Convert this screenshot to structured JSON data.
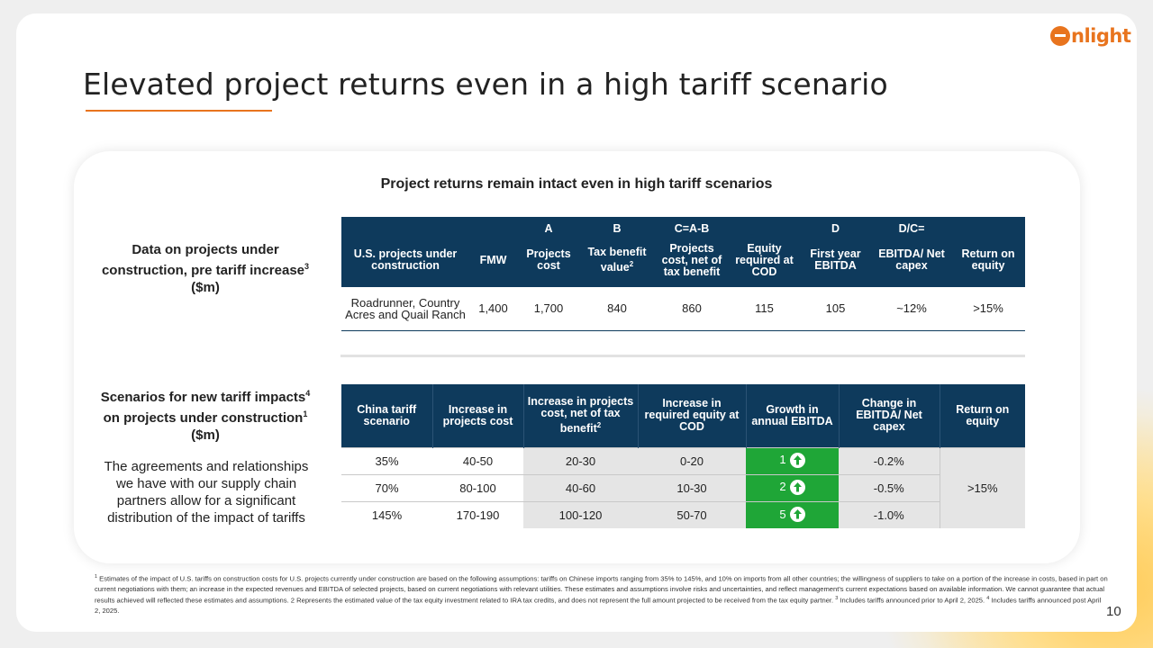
{
  "brand": {
    "logo_text": "nlight",
    "logo_letter": "e",
    "accent_color": "#e8741e",
    "header_color": "#0e3a5c",
    "green": "#1fa637"
  },
  "title": "Elevated project returns even in a high tariff scenario",
  "subtitle": "Project returns remain intact even in high tariff scenarios",
  "section1": {
    "label": "Data on projects under construction, pre tariff increase",
    "label_sup": "3",
    "label_suffix": "($m)",
    "letters": [
      "",
      "",
      "A",
      "B",
      "C=A-B",
      "",
      "D",
      "D/C=",
      ""
    ],
    "headers": [
      "U.S. projects under construction",
      "FMW",
      "Projects cost",
      "Tax benefit value",
      "Projects cost, net of tax benefit",
      "Equity required at COD",
      "First year EBITDA",
      "EBITDA/ Net capex",
      "Return on equity"
    ],
    "header_sup_tax": "2",
    "row": [
      "Roadrunner, Country Acres and Quail Ranch",
      "1,400",
      "1,700",
      "840",
      "860",
      "115",
      "105",
      "~12%",
      ">15%"
    ]
  },
  "section2": {
    "label_pre": "Scenarios for new tariff impacts",
    "label_sup1": "4",
    "label_mid": "on projects under construction",
    "label_sup2": "1",
    "label_suffix": "($m)",
    "note": "The agreements and relationships we have with our supply chain partners allow for a significant distribution of the impact of tariffs",
    "headers": [
      "China tariff scenario",
      "Increase in projects cost",
      "Increase in projects cost, net of tax benefit",
      "Increase in required equity at COD",
      "Growth in annual EBITDA",
      "Change in EBITDA/ Net capex",
      "Return on equity"
    ],
    "header_sup_net": "2",
    "rows": [
      {
        "scenario": "35%",
        "cost": "40-50",
        "net": "20-30",
        "equity": "0-20",
        "growth": "1",
        "change": "-0.2%"
      },
      {
        "scenario": "70%",
        "cost": "80-100",
        "net": "40-60",
        "equity": "10-30",
        "growth": "2",
        "change": "-0.5%"
      },
      {
        "scenario": "145%",
        "cost": "170-190",
        "net": "100-120",
        "equity": "50-70",
        "growth": "5",
        "change": "-1.0%"
      }
    ],
    "return_on_equity": ">15%"
  },
  "footnote": {
    "sup1": "1",
    "text1": " Estimates of the impact of U.S. tariffs on construction costs for U.S. projects currently under construction are based on the following assumptions: tariffs on Chinese imports ranging from 35% to 145%, and 10% on imports from all other countries; the willingness of suppliers to take on a portion of the increase in costs, based in part on current negotiations with them; an increase in the expected revenues and EBITDA of selected projects, based on current negotiations with relevant utilities. These estimates and assumptions involve risks and uncertainties, and reflect management's current expectations based on available information. We cannot guarantee that actual results achieved will reflected these estimates and assumptions. 2 Represents the estimated value of the tax equity investment related to IRA tax credits, and does not represent the full amount projected to be received from the tax equity partner. ",
    "sup3": "3",
    "text3": " Includes tariffs announced prior to April 2, 2025. ",
    "sup4": "4",
    "text4": " Includes tariffs announced post April 2, 2025."
  },
  "page_number": "10"
}
